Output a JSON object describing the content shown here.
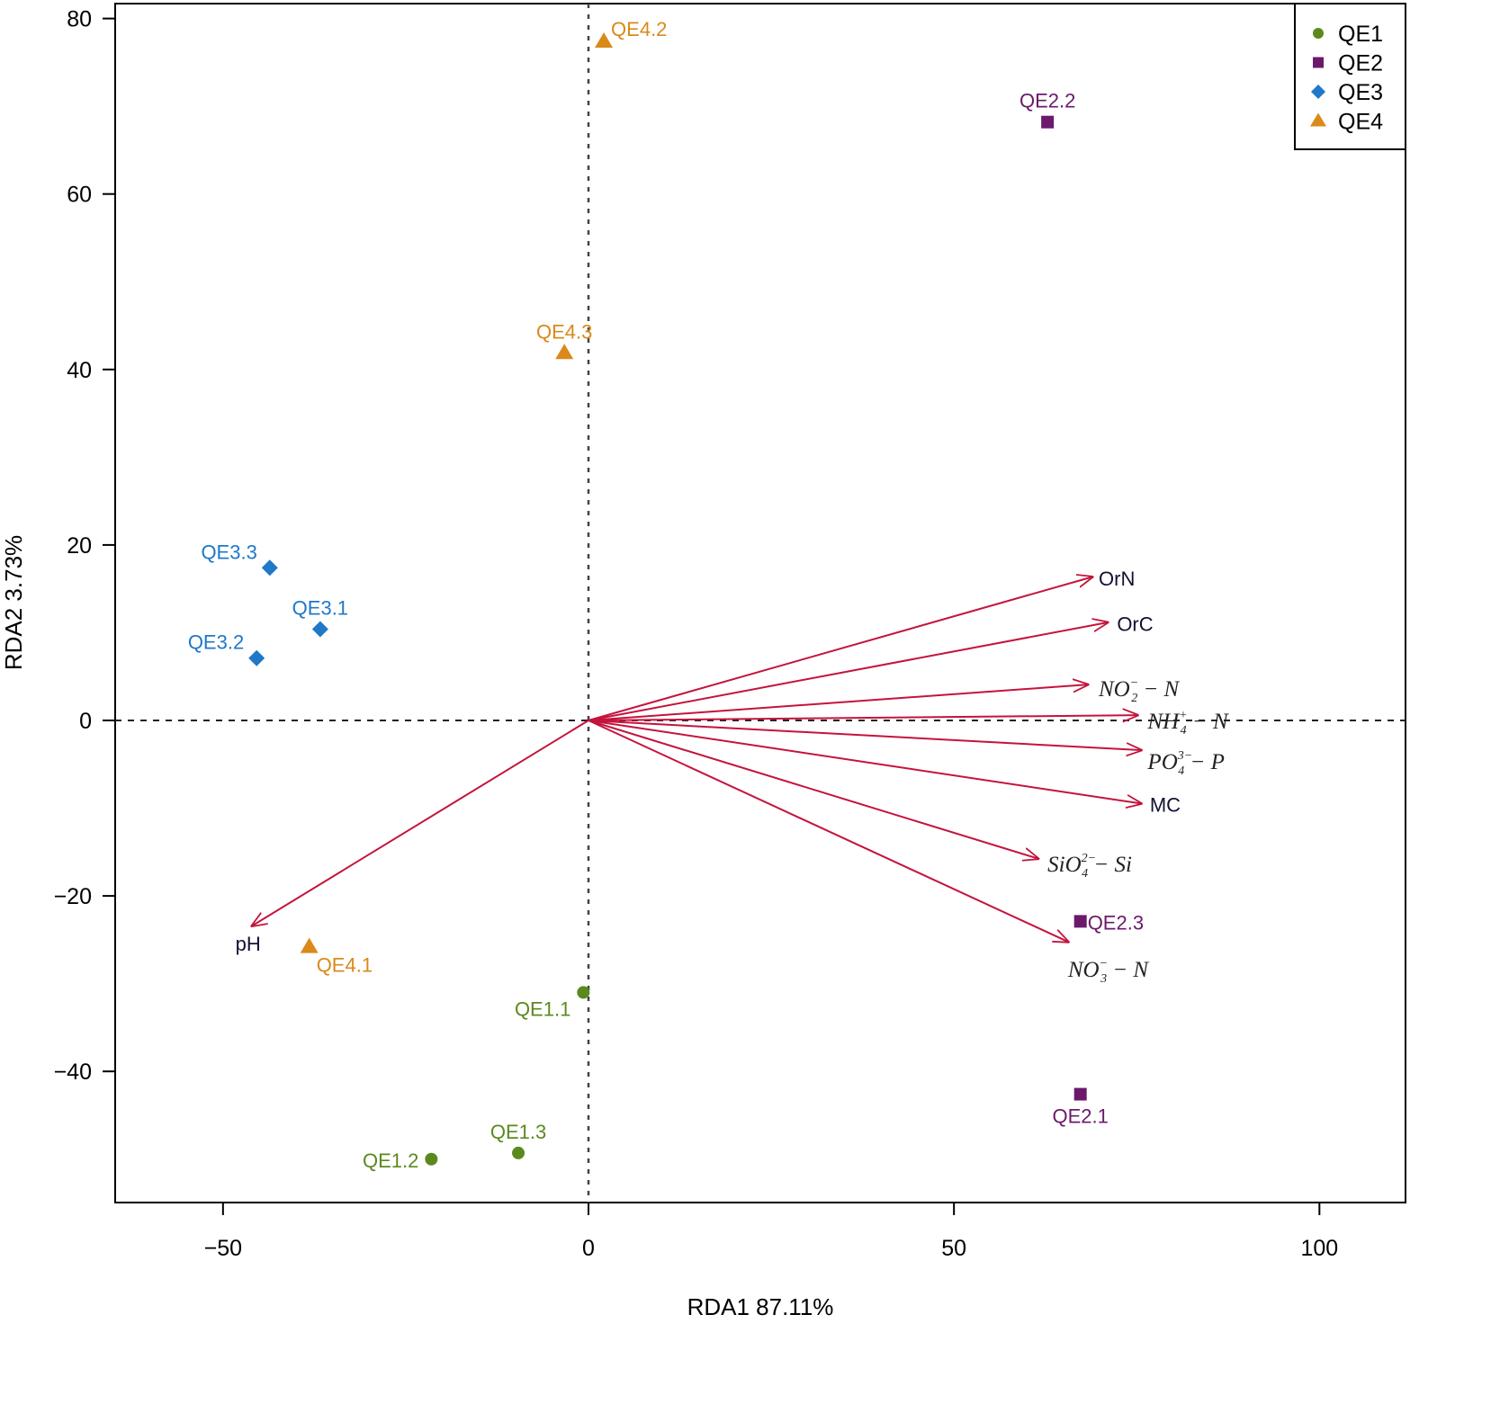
{
  "chart_data": {
    "type": "scatter",
    "subtype": "rda_biplot",
    "xlabel": "RDA1  87.11%",
    "ylabel": "RDA2  3.73%",
    "xlim": [
      -65,
      112
    ],
    "ylim": [
      -54,
      82
    ],
    "xticks": [
      -50,
      0,
      50,
      100
    ],
    "xtick_labels": [
      "−50",
      "0",
      "50",
      "100"
    ],
    "yticks": [
      -40,
      -20,
      0,
      20,
      40,
      60,
      80
    ],
    "ytick_labels": [
      "−40",
      "−20",
      "0",
      "20",
      "40",
      "60",
      "80"
    ],
    "reference_lines": {
      "x": 0,
      "y": 0,
      "style": "dotted"
    },
    "legend": {
      "position": "top-right",
      "entries": [
        {
          "name": "QE1",
          "color": "#5a8a1e",
          "shape": "circle"
        },
        {
          "name": "QE2",
          "color": "#6b1a6b",
          "shape": "square"
        },
        {
          "name": "QE3",
          "color": "#1f78c8",
          "shape": "diamond"
        },
        {
          "name": "QE4",
          "color": "#d98a1a",
          "shape": "triangle"
        }
      ]
    },
    "series": [
      {
        "name": "QE1",
        "color": "#5a8a1e",
        "shape": "circle",
        "points": [
          {
            "label": "QE1.1",
            "x": -0.7,
            "y": -31,
            "label_pos": "below-left"
          },
          {
            "label": "QE1.2",
            "x": -21.5,
            "y": -50,
            "label_pos": "left"
          },
          {
            "label": "QE1.3",
            "x": -9.6,
            "y": -49.3,
            "label_pos": "above"
          }
        ]
      },
      {
        "name": "QE2",
        "color": "#6b1a6b",
        "shape": "square",
        "points": [
          {
            "label": "QE2.1",
            "x": 67.3,
            "y": -42.6,
            "label_pos": "below"
          },
          {
            "label": "QE2.2",
            "x": 62.8,
            "y": 68.2,
            "label_pos": "above"
          },
          {
            "label": "QE2.3",
            "x": 67.3,
            "y": -22.9,
            "label_pos": "right"
          }
        ]
      },
      {
        "name": "QE3",
        "color": "#1f78c8",
        "shape": "diamond",
        "points": [
          {
            "label": "QE3.1",
            "x": -36.7,
            "y": 10.4,
            "label_pos": "above"
          },
          {
            "label": "QE3.2",
            "x": -45.4,
            "y": 7.1,
            "label_pos": "above-left"
          },
          {
            "label": "QE3.3",
            "x": -43.6,
            "y": 17.4,
            "label_pos": "above-left"
          }
        ]
      },
      {
        "name": "QE4",
        "color": "#d98a1a",
        "shape": "triangle",
        "points": [
          {
            "label": "QE4.1",
            "x": -38.2,
            "y": -25.8,
            "label_pos": "below-right"
          },
          {
            "label": "QE4.2",
            "x": 2.1,
            "y": 77.4,
            "label_pos": "above-right"
          },
          {
            "label": "QE4.3",
            "x": -3.3,
            "y": 41.9,
            "label_pos": "above"
          }
        ]
      }
    ],
    "vectors": [
      {
        "name": "pH",
        "x": -46.2,
        "y": -23.5,
        "label": "pH",
        "style": "normal",
        "label_x": -48.3,
        "label_y": -25.4
      },
      {
        "name": "OrN",
        "x": 69.1,
        "y": 16.4,
        "label": "OrN",
        "style": "normal",
        "label_x": 69.8,
        "label_y": 16.2
      },
      {
        "name": "OrC",
        "x": 71.2,
        "y": 11.2,
        "label": "OrC",
        "style": "normal",
        "label_x": 72.3,
        "label_y": 11.0
      },
      {
        "name": "NO2",
        "x": 68.5,
        "y": 4.1,
        "base": "NO",
        "sup": "−",
        "sub": "2",
        "suffix": " − N",
        "style": "chem",
        "label_x": 69.8,
        "label_y": 3.6
      },
      {
        "name": "NH4",
        "x": 75.3,
        "y": 0.6,
        "base": "NH",
        "sup": "+",
        "sub": "4",
        "suffix": " − N",
        "style": "chem",
        "label_x": 76.5,
        "label_y": -0.1
      },
      {
        "name": "PO4",
        "x": 75.8,
        "y": -3.4,
        "base": "PO",
        "sup": "3−",
        "sub": "4",
        "suffix": " − P",
        "style": "chem",
        "label_x": 76.5,
        "label_y": -4.7
      },
      {
        "name": "MC",
        "x": 75.8,
        "y": -9.5,
        "label": "MC",
        "style": "normal",
        "label_x": 76.8,
        "label_y": -9.6
      },
      {
        "name": "SiO4",
        "x": 61.7,
        "y": -15.8,
        "base": "SiO",
        "sup": "2−",
        "sub": "4",
        "suffix": " − Si",
        "style": "chem",
        "label_x": 62.8,
        "label_y": -16.4
      },
      {
        "name": "NO3",
        "x": 65.8,
        "y": -25.3,
        "base": "NO",
        "sup": "−",
        "sub": "3",
        "suffix": " − N",
        "style": "chem",
        "label_x": 65.6,
        "label_y": -28.4
      }
    ],
    "vector_color": "#c4143c"
  }
}
